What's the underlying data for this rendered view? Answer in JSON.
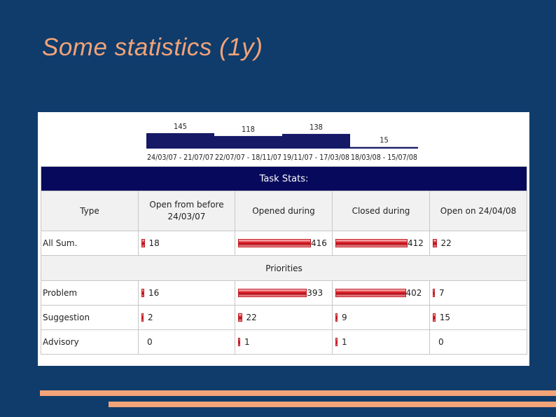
{
  "slide": {
    "title": "Some statistics (1y)"
  },
  "chart_data": {
    "type": "bar",
    "categories": [
      "24/03/07 - 21/07/07",
      "22/07/07 - 18/11/07",
      "19/11/07 - 17/03/08",
      "18/03/08 - 15/07/08"
    ],
    "values": [
      145,
      118,
      138,
      15
    ],
    "title": "",
    "xlabel": "",
    "ylabel": ""
  },
  "task_stats": {
    "title": "Task Stats:",
    "columns": [
      "Type",
      "Open from before 24/03/07",
      "Opened during",
      "Closed during",
      "Open on 24/04/08"
    ],
    "rows": [
      {
        "type": "All Sum.",
        "open_before": 18,
        "opened": 416,
        "closed": 412,
        "open_on": 22
      }
    ],
    "priorities_label": "Priorities",
    "priority_rows": [
      {
        "type": "Problem",
        "open_before": 16,
        "opened": 393,
        "closed": 402,
        "open_on": 7
      },
      {
        "type": "Suggestion",
        "open_before": 2,
        "opened": 22,
        "closed": 9,
        "open_on": 15
      },
      {
        "type": "Advisory",
        "open_before": 0,
        "opened": 1,
        "closed": 1,
        "open_on": 0
      }
    ]
  },
  "colors": {
    "background": "#0f3c6b",
    "title": "#f3a378",
    "accent_bar": "#f3a378",
    "chart_bar": "#151966",
    "table_header": "#070a5c",
    "data_bar": "#d9131e"
  }
}
